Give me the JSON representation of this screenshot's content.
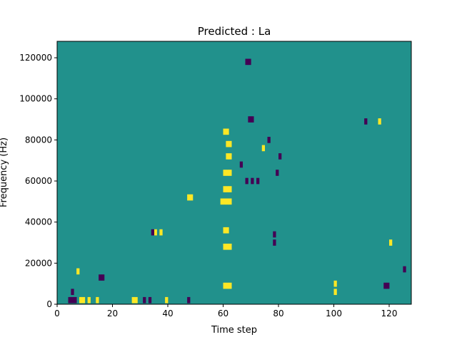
{
  "chart_data": {
    "type": "heatmap",
    "title": "Predicted : La",
    "xlabel": "Time step",
    "ylabel": "Frequency (Hz)",
    "xlim": [
      0,
      128
    ],
    "ylim": [
      0,
      128000
    ],
    "x_ticks": [
      0,
      20,
      40,
      60,
      80,
      100,
      120
    ],
    "y_ticks": [
      0,
      20000,
      40000,
      60000,
      80000,
      100000,
      120000
    ],
    "n_time_steps": 128,
    "n_freq_bins": 128,
    "colormap": "viridis",
    "value_levels": {
      "low": -1,
      "mid": 0,
      "high": 1
    },
    "colors": {
      "low": "#440154",
      "mid": "#21918c",
      "high": "#fde725"
    },
    "background_value": 0,
    "cells": [
      {
        "t": 4,
        "f": 2000,
        "v": -1
      },
      {
        "t": 5,
        "f": 2000,
        "v": -1
      },
      {
        "t": 6,
        "f": 2000,
        "v": -1
      },
      {
        "t": 8,
        "f": 2000,
        "v": 1
      },
      {
        "t": 9,
        "f": 2000,
        "v": 1
      },
      {
        "t": 11,
        "f": 2000,
        "v": 1
      },
      {
        "t": 14,
        "f": 2000,
        "v": 1
      },
      {
        "t": 27,
        "f": 2000,
        "v": 1
      },
      {
        "t": 28,
        "f": 2000,
        "v": 1
      },
      {
        "t": 31,
        "f": 2000,
        "v": -1
      },
      {
        "t": 33,
        "f": 2000,
        "v": -1
      },
      {
        "t": 39,
        "f": 2000,
        "v": 1
      },
      {
        "t": 47,
        "f": 2000,
        "v": -1
      },
      {
        "t": 60,
        "f": 9000,
        "v": 1
      },
      {
        "t": 61,
        "f": 9000,
        "v": 1
      },
      {
        "t": 62,
        "f": 9000,
        "v": 1
      },
      {
        "t": 5,
        "f": 6000,
        "v": -1
      },
      {
        "t": 15,
        "f": 13000,
        "v": -1
      },
      {
        "t": 16,
        "f": 13000,
        "v": -1
      },
      {
        "t": 7,
        "f": 16000,
        "v": 1
      },
      {
        "t": 37,
        "f": 35000,
        "v": 1
      },
      {
        "t": 35,
        "f": 35000,
        "v": 1
      },
      {
        "t": 34,
        "f": 35000,
        "v": -1
      },
      {
        "t": 60,
        "f": 28000,
        "v": 1
      },
      {
        "t": 61,
        "f": 28000,
        "v": 1
      },
      {
        "t": 62,
        "f": 28000,
        "v": 1
      },
      {
        "t": 60,
        "f": 36000,
        "v": 1
      },
      {
        "t": 61,
        "f": 36000,
        "v": 1
      },
      {
        "t": 59,
        "f": 50000,
        "v": 1
      },
      {
        "t": 60,
        "f": 50000,
        "v": 1
      },
      {
        "t": 61,
        "f": 50000,
        "v": 1
      },
      {
        "t": 62,
        "f": 50000,
        "v": 1
      },
      {
        "t": 60,
        "f": 56000,
        "v": 1
      },
      {
        "t": 61,
        "f": 56000,
        "v": 1
      },
      {
        "t": 62,
        "f": 56000,
        "v": 1
      },
      {
        "t": 60,
        "f": 64000,
        "v": 1
      },
      {
        "t": 61,
        "f": 64000,
        "v": 1
      },
      {
        "t": 62,
        "f": 64000,
        "v": 1
      },
      {
        "t": 61,
        "f": 72000,
        "v": 1
      },
      {
        "t": 62,
        "f": 72000,
        "v": 1
      },
      {
        "t": 61,
        "f": 78000,
        "v": 1
      },
      {
        "t": 62,
        "f": 78000,
        "v": 1
      },
      {
        "t": 60,
        "f": 84000,
        "v": 1
      },
      {
        "t": 61,
        "f": 84000,
        "v": 1
      },
      {
        "t": 47,
        "f": 52000,
        "v": 1
      },
      {
        "t": 48,
        "f": 52000,
        "v": 1
      },
      {
        "t": 68,
        "f": 60000,
        "v": -1
      },
      {
        "t": 70,
        "f": 60000,
        "v": -1
      },
      {
        "t": 72,
        "f": 60000,
        "v": -1
      },
      {
        "t": 66,
        "f": 68000,
        "v": -1
      },
      {
        "t": 70,
        "f": 90000,
        "v": -1
      },
      {
        "t": 69,
        "f": 90000,
        "v": -1
      },
      {
        "t": 68,
        "f": 118000,
        "v": -1
      },
      {
        "t": 69,
        "f": 118000,
        "v": -1
      },
      {
        "t": 74,
        "f": 76000,
        "v": 1
      },
      {
        "t": 76,
        "f": 80000,
        "v": -1
      },
      {
        "t": 78,
        "f": 30000,
        "v": -1
      },
      {
        "t": 78,
        "f": 34000,
        "v": -1
      },
      {
        "t": 79,
        "f": 64000,
        "v": -1
      },
      {
        "t": 80,
        "f": 72000,
        "v": -1
      },
      {
        "t": 100,
        "f": 10000,
        "v": 1
      },
      {
        "t": 100,
        "f": 6000,
        "v": 1
      },
      {
        "t": 111,
        "f": 89000,
        "v": -1
      },
      {
        "t": 116,
        "f": 89000,
        "v": 1
      },
      {
        "t": 118,
        "f": 9000,
        "v": -1
      },
      {
        "t": 119,
        "f": 9000,
        "v": -1
      },
      {
        "t": 120,
        "f": 30000,
        "v": 1
      },
      {
        "t": 125,
        "f": 17000,
        "v": -1
      }
    ]
  }
}
